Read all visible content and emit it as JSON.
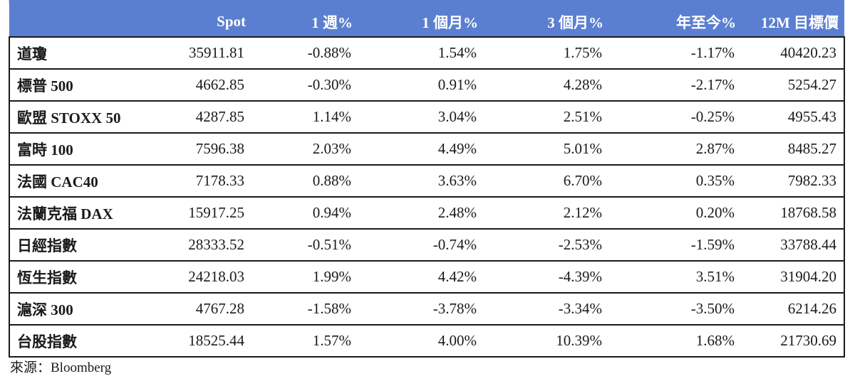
{
  "table": {
    "headers": [
      "",
      "Spot",
      "1 週%",
      "1 個月%",
      "3 個月%",
      "年至今%",
      "12M 目標價"
    ],
    "rows": [
      {
        "name": "道瓊",
        "cells": [
          "35911.81",
          "-0.88%",
          "1.54%",
          "1.75%",
          "-1.17%",
          "40420.23"
        ]
      },
      {
        "name": "標普 500",
        "cells": [
          "4662.85",
          "-0.30%",
          "0.91%",
          "4.28%",
          "-2.17%",
          "5254.27"
        ]
      },
      {
        "name": "歐盟 STOXX 50",
        "cells": [
          "4287.85",
          "1.14%",
          "3.04%",
          "2.51%",
          "-0.25%",
          "4955.43"
        ]
      },
      {
        "name": "富時 100",
        "cells": [
          "7596.38",
          "2.03%",
          "4.49%",
          "5.01%",
          "2.87%",
          "8485.27"
        ]
      },
      {
        "name": "法國 CAC40",
        "cells": [
          "7178.33",
          "0.88%",
          "3.63%",
          "6.70%",
          "0.35%",
          "7982.33"
        ]
      },
      {
        "name": "法蘭克福 DAX",
        "cells": [
          "15917.25",
          "0.94%",
          "2.48%",
          "2.12%",
          "0.20%",
          "18768.58"
        ]
      },
      {
        "name": "日經指數",
        "cells": [
          "28333.52",
          "-0.51%",
          "-0.74%",
          "-2.53%",
          "-1.59%",
          "33788.44"
        ]
      },
      {
        "name": "恆生指數",
        "cells": [
          "24218.03",
          "1.99%",
          "4.42%",
          "-4.39%",
          "3.51%",
          "31904.20"
        ]
      },
      {
        "name": "滬深 300",
        "cells": [
          "4767.28",
          "-1.58%",
          "-3.78%",
          "-3.34%",
          "-3.50%",
          "6214.26"
        ]
      },
      {
        "name": "台股指數",
        "cells": [
          "18525.44",
          "1.57%",
          "4.00%",
          "10.39%",
          "1.68%",
          "21730.69"
        ]
      }
    ]
  },
  "source": "來源：Bloomberg",
  "colors": {
    "header_bg": "#5b7fd0",
    "header_text": "#ffffff"
  }
}
